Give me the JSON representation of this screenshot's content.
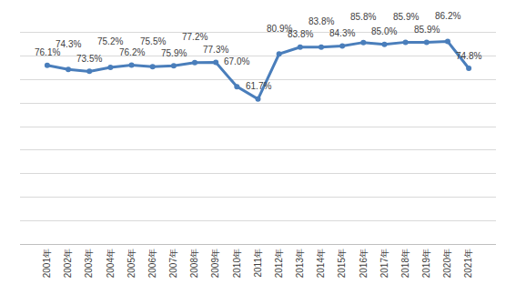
{
  "chart_data": {
    "type": "line",
    "categories": [
      "2001年",
      "2002年",
      "2003年",
      "2004年",
      "2005年",
      "2006年",
      "2007年",
      "2008年",
      "2009年",
      "2010年",
      "2011年",
      "2012年",
      "2013年",
      "2014年",
      "2015年",
      "2016年",
      "2017年",
      "2018年",
      "2019年",
      "2020年",
      "2021年"
    ],
    "values": [
      76.1,
      74.3,
      73.5,
      75.2,
      76.2,
      75.5,
      75.9,
      77.2,
      77.3,
      67.0,
      61.7,
      80.9,
      83.8,
      83.8,
      84.3,
      85.8,
      85.0,
      85.9,
      85.9,
      86.2,
      74.8
    ],
    "value_labels": [
      "76.1%",
      "74.3%",
      "73.5%",
      "75.2%",
      "76.2%",
      "75.5%",
      "75.9%",
      "77.2%",
      "77.3%",
      "67.0%",
      "61.7%",
      "80.9%",
      "83.8%",
      "83.8%",
      "84.3%",
      "85.8%",
      "85.0%",
      "85.9%",
      "85.9%",
      "86.2%",
      "74.8%"
    ],
    "color": "#4a7ebb",
    "marker": "circle",
    "ylim": [
      0,
      100
    ],
    "yticks": [
      0,
      10,
      20,
      30,
      40,
      50,
      60,
      70,
      80,
      90,
      100
    ],
    "grid": true,
    "data_labels": true,
    "tick_labels": "x"
  }
}
